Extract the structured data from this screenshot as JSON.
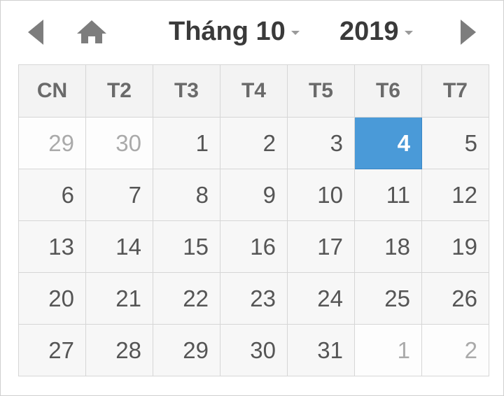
{
  "header": {
    "prev_icon": "triangle-left-icon",
    "home_icon": "home-icon",
    "next_icon": "triangle-right-icon",
    "month_label": "Tháng 10",
    "year_label": "2019",
    "caret_icon": "caret-down-icon"
  },
  "colors": {
    "selected_bg": "#4a9ad8",
    "icon": "#7d7d7d"
  },
  "weekdays": [
    "CN",
    "T2",
    "T3",
    "T4",
    "T5",
    "T6",
    "T7"
  ],
  "weeks": [
    [
      {
        "d": "29",
        "m": true
      },
      {
        "d": "30",
        "m": true
      },
      {
        "d": "1"
      },
      {
        "d": "2"
      },
      {
        "d": "3"
      },
      {
        "d": "4",
        "sel": true
      },
      {
        "d": "5"
      }
    ],
    [
      {
        "d": "6"
      },
      {
        "d": "7"
      },
      {
        "d": "8"
      },
      {
        "d": "9"
      },
      {
        "d": "10"
      },
      {
        "d": "11"
      },
      {
        "d": "12"
      }
    ],
    [
      {
        "d": "13"
      },
      {
        "d": "14"
      },
      {
        "d": "15"
      },
      {
        "d": "16"
      },
      {
        "d": "17"
      },
      {
        "d": "18"
      },
      {
        "d": "19"
      }
    ],
    [
      {
        "d": "20"
      },
      {
        "d": "21"
      },
      {
        "d": "22"
      },
      {
        "d": "23"
      },
      {
        "d": "24"
      },
      {
        "d": "25"
      },
      {
        "d": "26"
      }
    ],
    [
      {
        "d": "27"
      },
      {
        "d": "28"
      },
      {
        "d": "29"
      },
      {
        "d": "30"
      },
      {
        "d": "31"
      },
      {
        "d": "1",
        "m": true
      },
      {
        "d": "2",
        "m": true
      }
    ]
  ]
}
